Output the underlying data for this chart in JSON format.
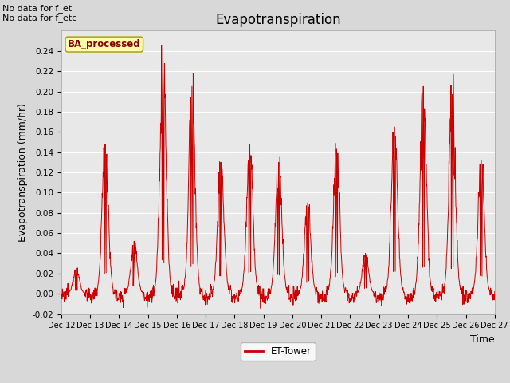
{
  "title": "Evapotranspiration",
  "ylabel": "Evapotranspiration (mm/hr)",
  "xlabel": "Time",
  "annotation_top_left": "No data for f_et\nNo data for f_etc",
  "legend_box_label": "BA_processed",
  "legend_line_label": "ET-Tower",
  "line_color": "#cc0000",
  "ylim": [
    -0.02,
    0.26
  ],
  "yticks": [
    -0.02,
    0.0,
    0.02,
    0.04,
    0.06,
    0.08,
    0.1,
    0.12,
    0.14,
    0.16,
    0.18,
    0.2,
    0.22,
    0.24
  ],
  "xtick_labels": [
    "Dec 12",
    "Dec 13",
    "Dec 14",
    "Dec 15",
    "Dec 16",
    "Dec 17",
    "Dec 18",
    "Dec 19",
    "Dec 20",
    "Dec 21",
    "Dec 22",
    "Dec 23",
    "Dec 24",
    "Dec 25",
    "Dec 26",
    "Dec 27"
  ],
  "background_color": "#d8d8d8",
  "plot_bg_color": "#e8e8e8",
  "grid_color": "#ffffff",
  "title_fontsize": 12,
  "axis_label_fontsize": 9,
  "tick_fontsize": 7.5,
  "annot_fontsize": 8,
  "day_peaks": [
    0.025,
    0.148,
    0.052,
    0.23,
    0.205,
    0.13,
    0.148,
    0.13,
    0.09,
    0.143,
    0.04,
    0.165,
    0.205,
    0.197,
    0.132
  ],
  "n_days": 15,
  "n_per_day": 96
}
